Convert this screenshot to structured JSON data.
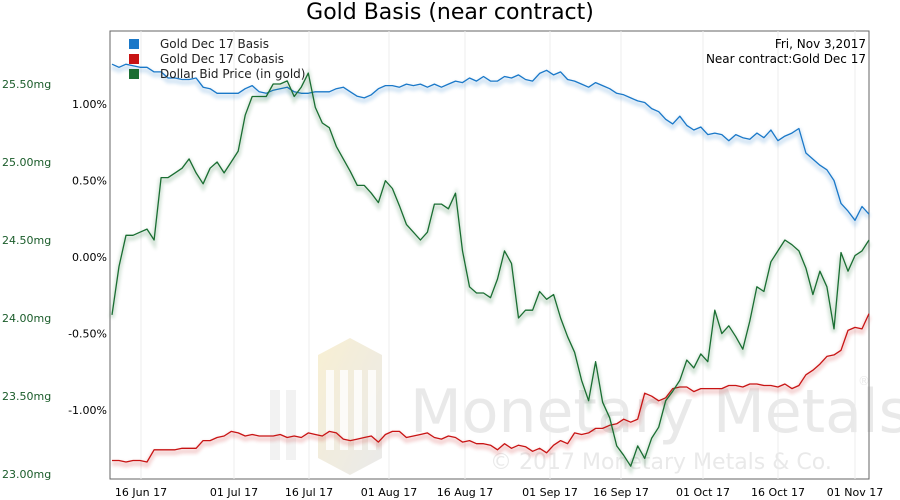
{
  "chart_data": {
    "type": "line",
    "title": "Gold Basis (near contract)",
    "date_box": {
      "line1": "Fri, Nov 3,2017",
      "line2": "Near contract:Gold Dec 17"
    },
    "watermark": {
      "brand": "Monetary Metals",
      "copyright": "© 2017 Monetary Metals & Co.",
      "registered": "®"
    },
    "x_ticks": [
      "16 Jun 17",
      "01 Jul 17",
      "16 Jul 17",
      "01 Aug 17",
      "16 Aug 17",
      "01 Sep 17",
      "16 Sep 17",
      "01 Oct 17",
      "16 Oct 17",
      "01 Nov 17"
    ],
    "left_axis": {
      "ticks": [
        "25.50mg",
        "25.00mg",
        "24.50mg",
        "24.00mg",
        "23.50mg",
        "23.00mg"
      ],
      "ylim": [
        23.0,
        25.5
      ],
      "color": "#1a5c2a"
    },
    "right_axis": {
      "ticks": [
        "1.00%",
        "0.50%",
        "0.00%",
        "-0.50%",
        "-1.00%"
      ],
      "ylim": [
        -1.0,
        1.0
      ],
      "color": "#000000"
    },
    "legend": [
      {
        "label": "Gold Dec 17 Basis",
        "color": "#1a78c8"
      },
      {
        "label": "Gold Dec 17 Cobasis",
        "color": "#c81414"
      },
      {
        "label": "Dollar Bid Price (in gold)",
        "color": "#1a6e32"
      }
    ],
    "series": [
      {
        "name": "Gold Dec 17 Basis",
        "axis": "percent",
        "color": "#1a78c8",
        "values": [
          1.26,
          1.24,
          1.26,
          1.25,
          1.24,
          1.24,
          1.21,
          1.21,
          1.17,
          1.17,
          1.16,
          1.16,
          1.17,
          1.11,
          1.1,
          1.07,
          1.07,
          1.07,
          1.07,
          1.1,
          1.12,
          1.08,
          1.07,
          1.09,
          1.1,
          1.11,
          1.08,
          1.07,
          1.07,
          1.08,
          1.08,
          1.08,
          1.1,
          1.11,
          1.08,
          1.05,
          1.04,
          1.06,
          1.1,
          1.12,
          1.12,
          1.11,
          1.13,
          1.12,
          1.13,
          1.11,
          1.13,
          1.11,
          1.13,
          1.15,
          1.14,
          1.17,
          1.15,
          1.18,
          1.15,
          1.15,
          1.18,
          1.17,
          1.19,
          1.16,
          1.15,
          1.2,
          1.22,
          1.19,
          1.21,
          1.16,
          1.15,
          1.13,
          1.11,
          1.14,
          1.12,
          1.1,
          1.07,
          1.06,
          1.04,
          1.02,
          1.01,
          0.97,
          0.95,
          0.9,
          0.87,
          0.92,
          0.86,
          0.83,
          0.85,
          0.8,
          0.81,
          0.8,
          0.76,
          0.8,
          0.78,
          0.77,
          0.81,
          0.78,
          0.83,
          0.76,
          0.79,
          0.81,
          0.84,
          0.68,
          0.64,
          0.6,
          0.57,
          0.5,
          0.35,
          0.3,
          0.24,
          0.33,
          0.28
        ]
      },
      {
        "name": "Gold Dec 17 Cobasis",
        "axis": "percent",
        "color": "#c81414",
        "values": [
          -1.33,
          -1.33,
          -1.34,
          -1.33,
          -1.33,
          -1.34,
          -1.26,
          -1.26,
          -1.26,
          -1.26,
          -1.25,
          -1.25,
          -1.25,
          -1.2,
          -1.2,
          -1.18,
          -1.17,
          -1.14,
          -1.15,
          -1.17,
          -1.16,
          -1.17,
          -1.17,
          -1.17,
          -1.16,
          -1.18,
          -1.17,
          -1.18,
          -1.15,
          -1.16,
          -1.17,
          -1.14,
          -1.15,
          -1.19,
          -1.2,
          -1.19,
          -1.18,
          -1.17,
          -1.21,
          -1.16,
          -1.14,
          -1.14,
          -1.18,
          -1.17,
          -1.16,
          -1.15,
          -1.18,
          -1.19,
          -1.17,
          -1.18,
          -1.21,
          -1.2,
          -1.22,
          -1.22,
          -1.23,
          -1.26,
          -1.22,
          -1.25,
          -1.23,
          -1.24,
          -1.27,
          -1.25,
          -1.28,
          -1.23,
          -1.2,
          -1.22,
          -1.15,
          -1.16,
          -1.15,
          -1.12,
          -1.12,
          -1.1,
          -1.09,
          -1.06,
          -1.08,
          -1.06,
          -0.89,
          -0.91,
          -0.94,
          -0.92,
          -0.86,
          -0.85,
          -0.85,
          -0.88,
          -0.86,
          -0.86,
          -0.86,
          -0.86,
          -0.84,
          -0.84,
          -0.85,
          -0.83,
          -0.83,
          -0.84,
          -0.84,
          -0.85,
          -0.83,
          -0.86,
          -0.84,
          -0.77,
          -0.74,
          -0.7,
          -0.65,
          -0.64,
          -0.61,
          -0.48,
          -0.46,
          -0.47,
          -0.37
        ]
      },
      {
        "name": "Dollar Bid Price (in gold)",
        "axis": "mg",
        "color": "#1a6e32",
        "values": [
          24.02,
          24.33,
          24.53,
          24.53,
          24.55,
          24.57,
          24.5,
          24.9,
          24.9,
          24.93,
          24.96,
          25.02,
          24.93,
          24.86,
          24.96,
          25.0,
          24.93,
          25.0,
          25.07,
          25.3,
          25.42,
          25.42,
          25.42,
          25.5,
          25.5,
          25.52,
          25.42,
          25.48,
          25.57,
          25.35,
          25.25,
          25.22,
          25.1,
          25.02,
          24.94,
          24.85,
          24.85,
          24.8,
          24.74,
          24.88,
          24.83,
          24.72,
          24.6,
          24.55,
          24.5,
          24.55,
          24.73,
          24.73,
          24.7,
          24.8,
          24.43,
          24.2,
          24.16,
          24.16,
          24.13,
          24.25,
          24.43,
          24.35,
          24.0,
          24.05,
          24.05,
          24.17,
          24.12,
          24.15,
          24.0,
          23.88,
          23.78,
          23.6,
          23.47,
          23.72,
          23.46,
          23.36,
          23.18,
          23.12,
          23.05,
          23.18,
          23.1,
          23.23,
          23.3,
          23.47,
          23.53,
          23.6,
          23.73,
          23.68,
          23.77,
          23.72,
          24.05,
          23.9,
          23.95,
          23.88,
          23.8,
          23.98,
          24.2,
          24.17,
          24.36,
          24.43,
          24.5,
          24.47,
          24.43,
          24.32,
          24.15,
          24.3,
          24.2,
          23.93,
          24.42,
          24.3,
          24.4,
          24.43,
          24.5
        ]
      }
    ]
  }
}
